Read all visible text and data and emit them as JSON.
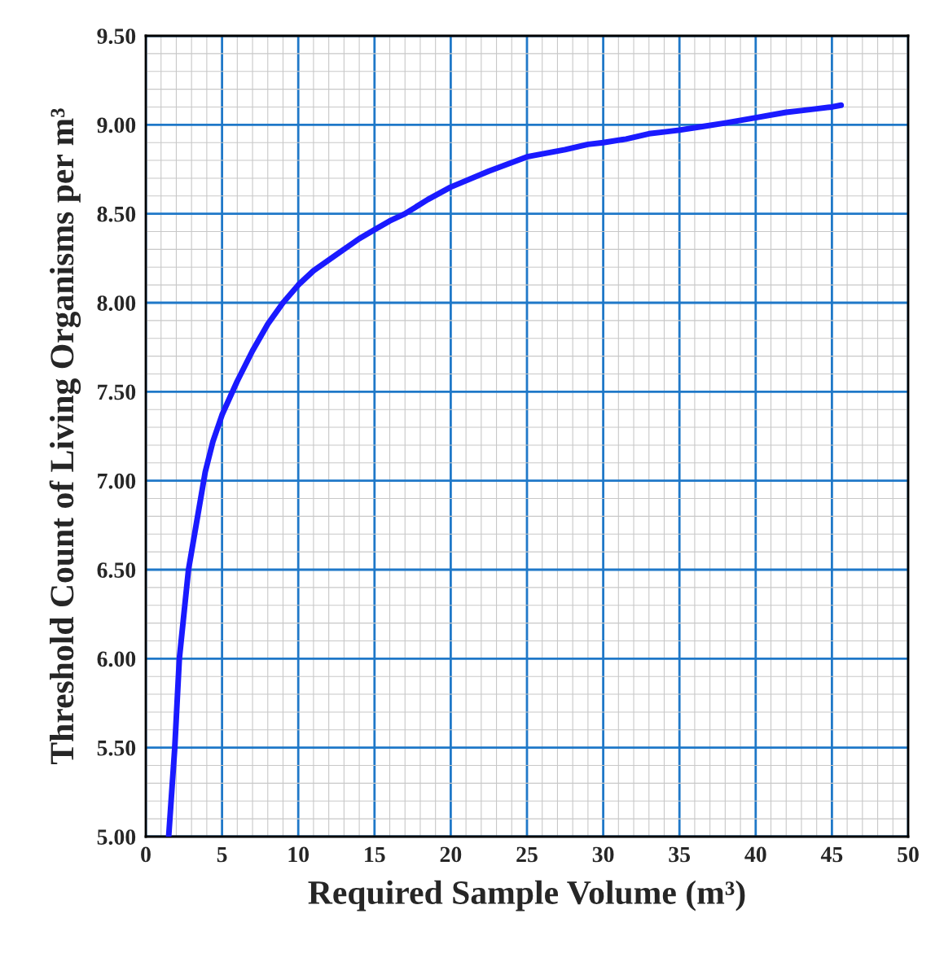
{
  "chart_data": {
    "type": "line",
    "xlabel": "Required Sample Volume (m³)",
    "ylabel": "Threshold Count of Living Organisms per m³",
    "series": [
      {
        "color": "#1a1aff",
        "x": [
          1.5,
          1.9,
          2.2,
          2.8,
          3.4,
          3.9,
          4.4,
          5.0,
          6.0,
          7.0,
          8.0,
          9.0,
          10.0,
          11.0,
          12.5,
          14.0,
          15.0,
          16.0,
          17.0,
          18.5,
          20.0,
          22.5,
          25.0,
          27.5,
          29.0,
          30.0,
          31.5,
          33.0,
          34.0,
          35.0,
          36.5,
          38.0,
          40.0,
          42.0,
          43.0,
          44.0,
          45.0,
          45.6
        ],
        "values": [
          5.0,
          5.5,
          6.0,
          6.5,
          6.8,
          7.05,
          7.22,
          7.37,
          7.56,
          7.73,
          7.88,
          8.0,
          8.1,
          8.18,
          8.27,
          8.36,
          8.41,
          8.46,
          8.5,
          8.58,
          8.65,
          8.74,
          8.82,
          8.86,
          8.89,
          8.9,
          8.92,
          8.95,
          8.96,
          8.97,
          8.99,
          9.01,
          9.04,
          9.07,
          9.08,
          9.09,
          9.1,
          9.11
        ]
      }
    ],
    "xlim": [
      0,
      50
    ],
    "xticks": [
      0,
      5,
      10,
      15,
      20,
      25,
      30,
      35,
      40,
      45,
      50
    ],
    "ylim": [
      5.0,
      9.5
    ],
    "yticks": [
      {
        "value": 5.0,
        "label": "5.00"
      },
      {
        "value": 5.5,
        "label": "5.50"
      },
      {
        "value": 6.0,
        "label": "6.00"
      },
      {
        "value": 6.5,
        "label": "6.50"
      },
      {
        "value": 7.0,
        "label": "7.00"
      },
      {
        "value": 7.5,
        "label": "7.50"
      },
      {
        "value": 8.0,
        "label": "8.00"
      },
      {
        "value": 8.5,
        "label": "8.50"
      },
      {
        "value": 9.0,
        "label": "9.00"
      },
      {
        "value": 9.5,
        "label": "9.50"
      }
    ],
    "grid": true,
    "marker": "none",
    "line_style": "solid"
  }
}
